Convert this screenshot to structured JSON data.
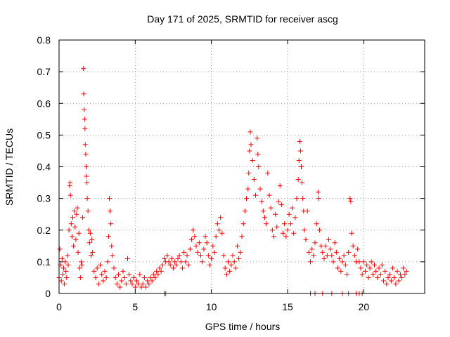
{
  "chart_data": {
    "type": "scatter",
    "title": "Day 171 of 2025, SRMTID for receiver ascg",
    "xlabel": "GPS time / hours",
    "ylabel": "SRMTID / TECUs",
    "xlim": [
      0,
      24
    ],
    "ylim": [
      0,
      0.8
    ],
    "xticks": [
      {
        "value": 0,
        "label": "0"
      },
      {
        "value": 5,
        "label": "5"
      },
      {
        "value": 10,
        "label": "10"
      },
      {
        "value": 15,
        "label": "15"
      },
      {
        "value": 20,
        "label": "20"
      }
    ],
    "yticks": [
      {
        "value": 0,
        "label": "0"
      },
      {
        "value": 0.1,
        "label": "0.1"
      },
      {
        "value": 0.2,
        "label": "0.2"
      },
      {
        "value": 0.3,
        "label": "0.3"
      },
      {
        "value": 0.4,
        "label": "0.4"
      },
      {
        "value": 0.5,
        "label": "0.5"
      },
      {
        "value": 0.6,
        "label": "0.6"
      },
      {
        "value": 0.7,
        "label": "0.7"
      },
      {
        "value": 0.8,
        "label": "0.8"
      }
    ],
    "grid": true,
    "marker": "plus",
    "series": [
      {
        "name": "SRMTID",
        "color": "#ff0000",
        "points": [
          [
            0.0,
            0.05
          ],
          [
            0.05,
            0.14
          ],
          [
            0.1,
            0.09
          ],
          [
            0.15,
            0.04
          ],
          [
            0.2,
            0.11
          ],
          [
            0.25,
            0.06
          ],
          [
            0.3,
            0.08
          ],
          [
            0.35,
            0.03
          ],
          [
            0.4,
            0.1
          ],
          [
            0.45,
            0.07
          ],
          [
            0.5,
            0.05
          ],
          [
            0.55,
            0.12
          ],
          [
            0.6,
            0.09
          ],
          [
            0.65,
            0.2
          ],
          [
            0.7,
            0.34
          ],
          [
            0.72,
            0.35
          ],
          [
            0.75,
            0.31
          ],
          [
            0.8,
            0.22
          ],
          [
            0.85,
            0.18
          ],
          [
            0.9,
            0.24
          ],
          [
            0.95,
            0.15
          ],
          [
            1.0,
            0.26
          ],
          [
            1.05,
            0.21
          ],
          [
            1.1,
            0.17
          ],
          [
            1.15,
            0.25
          ],
          [
            1.2,
            0.27
          ],
          [
            1.25,
            0.13
          ],
          [
            1.3,
            0.19
          ],
          [
            1.35,
            0.08
          ],
          [
            1.4,
            0.05
          ],
          [
            1.45,
            0.1
          ],
          [
            1.5,
            0.09
          ],
          [
            1.55,
            0.24
          ],
          [
            1.6,
            0.71
          ],
          [
            1.62,
            0.63
          ],
          [
            1.65,
            0.58
          ],
          [
            1.68,
            0.55
          ],
          [
            1.7,
            0.52
          ],
          [
            1.72,
            0.47
          ],
          [
            1.75,
            0.44
          ],
          [
            1.78,
            0.4
          ],
          [
            1.8,
            0.37
          ],
          [
            1.83,
            0.35
          ],
          [
            1.85,
            0.3
          ],
          [
            1.9,
            0.26
          ],
          [
            1.95,
            0.2
          ],
          [
            2.0,
            0.16
          ],
          [
            2.05,
            0.19
          ],
          [
            2.1,
            0.12
          ],
          [
            2.15,
            0.17
          ],
          [
            2.2,
            0.13
          ],
          [
            2.3,
            0.07
          ],
          [
            2.4,
            0.05
          ],
          [
            2.5,
            0.08
          ],
          [
            2.6,
            0.03
          ],
          [
            2.7,
            0.09
          ],
          [
            2.8,
            0.06
          ],
          [
            2.9,
            0.04
          ],
          [
            3.0,
            0.07
          ],
          [
            3.1,
            0.05
          ],
          [
            3.2,
            0.1
          ],
          [
            3.25,
            0.18
          ],
          [
            3.3,
            0.3
          ],
          [
            3.35,
            0.26
          ],
          [
            3.4,
            0.22
          ],
          [
            3.45,
            0.15
          ],
          [
            3.5,
            0.12
          ],
          [
            3.6,
            0.08
          ],
          [
            3.7,
            0.05
          ],
          [
            3.8,
            0.03
          ],
          [
            3.9,
            0.06
          ],
          [
            4.0,
            0.02
          ],
          [
            4.1,
            0.04
          ],
          [
            4.2,
            0.07
          ],
          [
            4.3,
            0.05
          ],
          [
            4.4,
            0.03
          ],
          [
            4.5,
            0.11
          ],
          [
            4.6,
            0.06
          ],
          [
            4.7,
            0.04
          ],
          [
            4.8,
            0.03
          ],
          [
            4.9,
            0.05
          ],
          [
            5.0,
            0.02
          ],
          [
            5.1,
            0.04
          ],
          [
            5.2,
            0.03
          ],
          [
            5.3,
            0.06
          ],
          [
            5.4,
            0.02
          ],
          [
            5.5,
            0.03
          ],
          [
            5.6,
            0.05
          ],
          [
            5.7,
            0.02
          ],
          [
            5.8,
            0.04
          ],
          [
            5.9,
            0.03
          ],
          [
            6.0,
            0.05
          ],
          [
            6.1,
            0.04
          ],
          [
            6.2,
            0.06
          ],
          [
            6.3,
            0.05
          ],
          [
            6.4,
            0.07
          ],
          [
            6.5,
            0.06
          ],
          [
            6.6,
            0.08
          ],
          [
            6.7,
            0.07
          ],
          [
            6.8,
            0.09
          ],
          [
            6.9,
            0.11
          ],
          [
            7.0,
            0.1
          ],
          [
            7.1,
            0.12
          ],
          [
            7.2,
            0.1
          ],
          [
            7.3,
            0.09
          ],
          [
            7.4,
            0.11
          ],
          [
            7.5,
            0.08
          ],
          [
            7.6,
            0.1
          ],
          [
            7.7,
            0.09
          ],
          [
            7.8,
            0.11
          ],
          [
            7.9,
            0.12
          ],
          [
            8.0,
            0.1
          ],
          [
            8.1,
            0.08
          ],
          [
            8.2,
            0.13
          ],
          [
            8.3,
            0.1
          ],
          [
            8.4,
            0.12
          ],
          [
            8.5,
            0.09
          ],
          [
            8.6,
            0.14
          ],
          [
            8.7,
            0.17
          ],
          [
            8.8,
            0.2
          ],
          [
            8.9,
            0.18
          ],
          [
            9.0,
            0.15
          ],
          [
            9.1,
            0.13
          ],
          [
            9.2,
            0.16
          ],
          [
            9.3,
            0.12
          ],
          [
            9.4,
            0.1
          ],
          [
            9.5,
            0.14
          ],
          [
            9.6,
            0.18
          ],
          [
            9.7,
            0.16
          ],
          [
            9.8,
            0.12
          ],
          [
            9.9,
            0.09
          ],
          [
            10.0,
            0.11
          ],
          [
            10.1,
            0.15
          ],
          [
            10.2,
            0.13
          ],
          [
            10.3,
            0.18
          ],
          [
            10.4,
            0.22
          ],
          [
            10.5,
            0.2
          ],
          [
            10.6,
            0.24
          ],
          [
            10.7,
            0.19
          ],
          [
            10.8,
            0.12
          ],
          [
            10.9,
            0.08
          ],
          [
            11.0,
            0.06
          ],
          [
            11.1,
            0.1
          ],
          [
            11.2,
            0.07
          ],
          [
            11.3,
            0.09
          ],
          [
            11.4,
            0.12
          ],
          [
            11.5,
            0.1
          ],
          [
            11.6,
            0.08
          ],
          [
            11.7,
            0.15
          ],
          [
            11.8,
            0.11
          ],
          [
            11.9,
            0.13
          ],
          [
            12.0,
            0.18
          ],
          [
            12.1,
            0.22
          ],
          [
            12.2,
            0.26
          ],
          [
            12.3,
            0.3
          ],
          [
            12.4,
            0.33
          ],
          [
            12.45,
            0.38
          ],
          [
            12.5,
            0.45
          ],
          [
            12.55,
            0.51
          ],
          [
            12.6,
            0.47
          ],
          [
            12.7,
            0.42
          ],
          [
            12.8,
            0.36
          ],
          [
            12.9,
            0.31
          ],
          [
            13.0,
            0.49
          ],
          [
            13.05,
            0.44
          ],
          [
            13.1,
            0.4
          ],
          [
            13.2,
            0.33
          ],
          [
            13.3,
            0.29
          ],
          [
            13.4,
            0.26
          ],
          [
            13.5,
            0.24
          ],
          [
            13.6,
            0.22
          ],
          [
            13.7,
            0.38
          ],
          [
            13.8,
            0.31
          ],
          [
            13.9,
            0.27
          ],
          [
            14.0,
            0.2
          ],
          [
            14.1,
            0.18
          ],
          [
            14.2,
            0.25
          ],
          [
            14.3,
            0.21
          ],
          [
            14.4,
            0.29
          ],
          [
            14.5,
            0.34
          ],
          [
            14.6,
            0.28
          ],
          [
            14.7,
            0.19
          ],
          [
            14.8,
            0.22
          ],
          [
            14.9,
            0.18
          ],
          [
            15.0,
            0.2
          ],
          [
            15.1,
            0.25
          ],
          [
            15.2,
            0.22
          ],
          [
            15.3,
            0.27
          ],
          [
            15.4,
            0.19
          ],
          [
            15.5,
            0.24
          ],
          [
            15.6,
            0.3
          ],
          [
            15.7,
            0.36
          ],
          [
            15.75,
            0.42
          ],
          [
            15.8,
            0.48
          ],
          [
            15.85,
            0.45
          ],
          [
            15.9,
            0.4
          ],
          [
            15.95,
            0.35
          ],
          [
            16.0,
            0.3
          ],
          [
            16.05,
            0.26
          ],
          [
            16.1,
            0.2
          ],
          [
            16.2,
            0.17
          ],
          [
            16.3,
            0.26
          ],
          [
            16.4,
            0.13
          ],
          [
            16.5,
            0.1
          ],
          [
            16.6,
            0.14
          ],
          [
            16.7,
            0.12
          ],
          [
            16.8,
            0.16
          ],
          [
            16.9,
            0.22
          ],
          [
            17.0,
            0.32
          ],
          [
            17.05,
            0.3
          ],
          [
            17.1,
            0.2
          ],
          [
            17.2,
            0.15
          ],
          [
            17.3,
            0.13
          ],
          [
            17.4,
            0.11
          ],
          [
            17.5,
            0.15
          ],
          [
            17.6,
            0.12
          ],
          [
            17.7,
            0.17
          ],
          [
            17.8,
            0.14
          ],
          [
            17.9,
            0.12
          ],
          [
            18.0,
            0.1
          ],
          [
            18.1,
            0.16
          ],
          [
            18.2,
            0.13
          ],
          [
            18.3,
            0.08
          ],
          [
            18.4,
            0.11
          ],
          [
            18.5,
            0.07
          ],
          [
            18.6,
            0.1
          ],
          [
            18.7,
            0.12
          ],
          [
            18.8,
            0.09
          ],
          [
            18.9,
            0.06
          ],
          [
            19.0,
            0.13
          ],
          [
            19.1,
            0.3
          ],
          [
            19.15,
            0.29
          ],
          [
            19.2,
            0.19
          ],
          [
            19.3,
            0.15
          ],
          [
            19.4,
            0.12
          ],
          [
            19.5,
            0.1
          ],
          [
            19.6,
            0.14
          ],
          [
            19.7,
            0.1
          ],
          [
            19.8,
            0.08
          ],
          [
            19.9,
            0.06
          ],
          [
            20.0,
            0.1
          ],
          [
            20.1,
            0.07
          ],
          [
            20.2,
            0.09
          ],
          [
            20.3,
            0.05
          ],
          [
            20.4,
            0.08
          ],
          [
            20.5,
            0.1
          ],
          [
            20.6,
            0.06
          ],
          [
            20.7,
            0.09
          ],
          [
            20.8,
            0.07
          ],
          [
            20.9,
            0.05
          ],
          [
            21.0,
            0.08
          ],
          [
            21.1,
            0.06
          ],
          [
            21.2,
            0.09
          ],
          [
            21.3,
            0.04
          ],
          [
            21.4,
            0.07
          ],
          [
            21.5,
            0.03
          ],
          [
            21.6,
            0.05
          ],
          [
            21.7,
            0.06
          ],
          [
            21.8,
            0.04
          ],
          [
            21.9,
            0.08
          ],
          [
            22.0,
            0.05
          ],
          [
            22.1,
            0.03
          ],
          [
            22.2,
            0.07
          ],
          [
            22.3,
            0.04
          ],
          [
            22.4,
            0.06
          ],
          [
            22.5,
            0.05
          ],
          [
            22.6,
            0.08
          ],
          [
            22.7,
            0.06
          ],
          [
            22.8,
            0.07
          ],
          [
            6.9,
            0.0
          ],
          [
            7.0,
            0.0
          ],
          [
            16.5,
            0.0
          ],
          [
            16.8,
            0.0
          ],
          [
            17.3,
            0.0
          ],
          [
            17.9,
            0.0
          ],
          [
            18.6,
            0.0
          ],
          [
            19.0,
            0.0
          ],
          [
            19.5,
            0.0
          ],
          [
            19.7,
            0.0
          ],
          [
            19.9,
            0.0
          ]
        ]
      }
    ]
  }
}
